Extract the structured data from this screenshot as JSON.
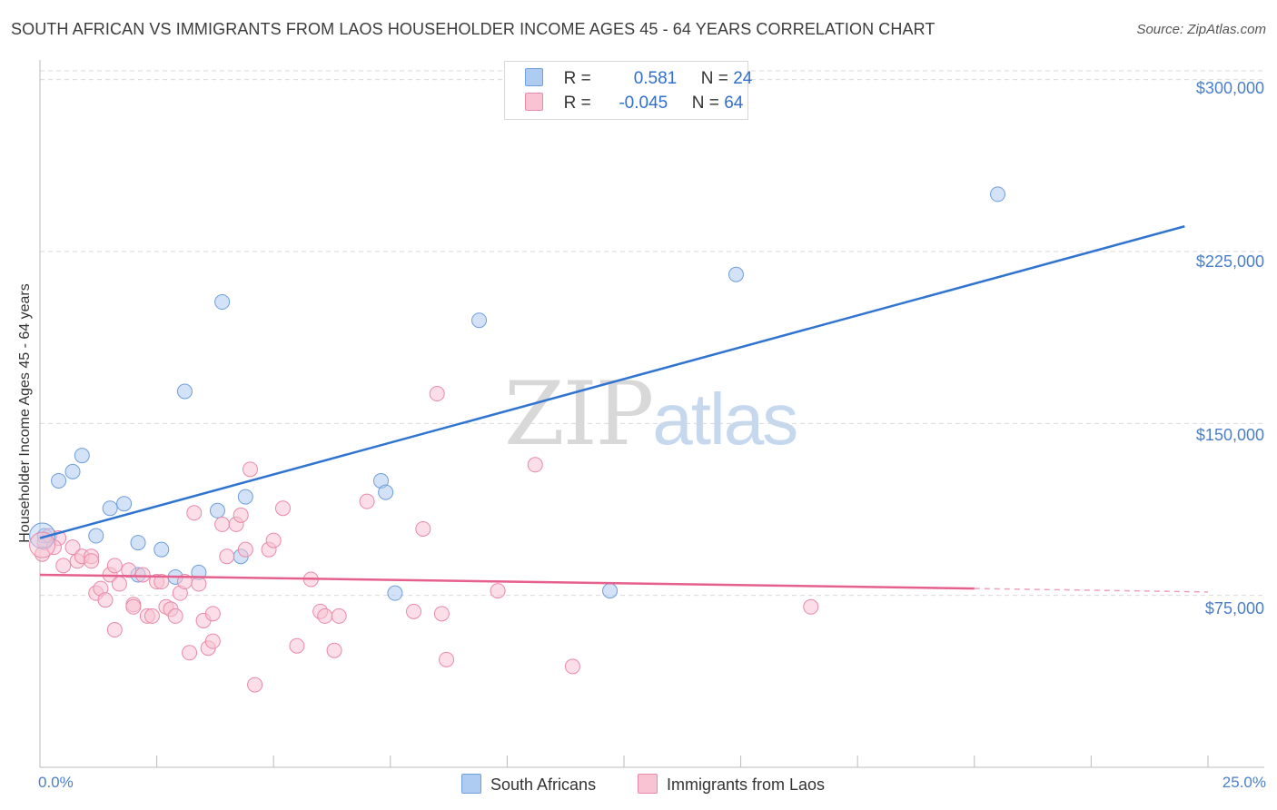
{
  "header": {
    "title": "SOUTH AFRICAN VS IMMIGRANTS FROM LAOS HOUSEHOLDER INCOME AGES 45 - 64 YEARS CORRELATION CHART",
    "source": "Source: ZipAtlas.com"
  },
  "watermark": {
    "zip": "ZIP",
    "atlas": "atlas"
  },
  "legend_top": {
    "rows": [
      {
        "r_label": "R =",
        "r_value": "0.581",
        "n_label": "N =",
        "n_value": "24",
        "color": "#aecbf1",
        "border": "#6f9fdc"
      },
      {
        "r_label": "R =",
        "r_value": "-0.045",
        "n_label": "N =",
        "n_value": "64",
        "color": "#f8c3d3",
        "border": "#e98aa8"
      }
    ]
  },
  "bottom_legend": {
    "items": [
      {
        "label": "South Africans",
        "color": "#aecbf1",
        "border": "#6f9fdc"
      },
      {
        "label": "Immigrants from Laos",
        "color": "#f8c3d3",
        "border": "#e98aa8"
      }
    ]
  },
  "chart_data": {
    "type": "scatter",
    "title": "SOUTH AFRICAN VS IMMIGRANTS FROM LAOS HOUSEHOLDER INCOME AGES 45 - 64 YEARS CORRELATION CHART",
    "xlabel": "",
    "ylabel": "Householder Income Ages 45 - 64 years",
    "xlim": [
      0,
      25
    ],
    "ylim": [
      0,
      307000
    ],
    "x_tick_labels": [
      "0.0%",
      "25.0%"
    ],
    "y_ticks": [
      75000,
      150000,
      225000,
      300000
    ],
    "y_tick_labels": [
      "$75,000",
      "$150,000",
      "$225,000",
      "$300,000"
    ],
    "grid": true,
    "legend_position": "top-center",
    "series": [
      {
        "name": "South Africans",
        "color": "#6f9fdc",
        "fill": "#aecbf1",
        "trend_color": "#2f74d0",
        "trend": {
          "x0": 0,
          "y0": 100000,
          "x1": 24.5,
          "y1": 236000
        },
        "points": [
          [
            0.1,
            101000
          ],
          [
            0.4,
            125000
          ],
          [
            0.7,
            129000
          ],
          [
            0.9,
            136000
          ],
          [
            1.2,
            101000
          ],
          [
            1.5,
            113000
          ],
          [
            1.8,
            115000
          ],
          [
            2.1,
            98000
          ],
          [
            2.1,
            84000
          ],
          [
            2.6,
            95000
          ],
          [
            2.9,
            83000
          ],
          [
            3.1,
            164000
          ],
          [
            3.4,
            85000
          ],
          [
            3.8,
            112000
          ],
          [
            3.9,
            203000
          ],
          [
            4.3,
            92000
          ],
          [
            4.4,
            118000
          ],
          [
            7.3,
            125000
          ],
          [
            7.4,
            120000
          ],
          [
            7.6,
            76000
          ],
          [
            9.4,
            195000
          ],
          [
            12.2,
            77000
          ],
          [
            14.9,
            215000
          ],
          [
            20.5,
            250000
          ]
        ]
      },
      {
        "name": "Immigrants from Laos",
        "color": "#e98aa8",
        "fill": "#f8c3d3",
        "trend_color": "#e5608d",
        "trend": {
          "x0": 0,
          "y0": 84000,
          "x1": 20,
          "y1": 78000
        },
        "trend_dashed_to": {
          "x": 25,
          "y": 76500
        },
        "points": [
          [
            0.1,
            98000
          ],
          [
            0.2,
            101000
          ],
          [
            0.4,
            100000
          ],
          [
            0.5,
            88000
          ],
          [
            0.7,
            96000
          ],
          [
            0.8,
            90000
          ],
          [
            0.9,
            92000
          ],
          [
            1.1,
            92000
          ],
          [
            1.1,
            90000
          ],
          [
            1.2,
            76000
          ],
          [
            1.3,
            78000
          ],
          [
            1.4,
            73000
          ],
          [
            1.5,
            84000
          ],
          [
            1.6,
            88000
          ],
          [
            1.6,
            60000
          ],
          [
            1.7,
            80000
          ],
          [
            1.9,
            86000
          ],
          [
            2.0,
            71000
          ],
          [
            2.0,
            70000
          ],
          [
            2.2,
            84000
          ],
          [
            2.3,
            66000
          ],
          [
            2.4,
            66000
          ],
          [
            2.5,
            81000
          ],
          [
            2.6,
            81000
          ],
          [
            2.7,
            70000
          ],
          [
            2.8,
            69000
          ],
          [
            2.9,
            66000
          ],
          [
            3.0,
            76000
          ],
          [
            3.1,
            81000
          ],
          [
            3.2,
            50000
          ],
          [
            3.4,
            80000
          ],
          [
            3.3,
            111000
          ],
          [
            3.5,
            64000
          ],
          [
            3.6,
            52000
          ],
          [
            3.7,
            67000
          ],
          [
            3.7,
            55000
          ],
          [
            3.9,
            106000
          ],
          [
            4.0,
            92000
          ],
          [
            4.2,
            106000
          ],
          [
            4.3,
            110000
          ],
          [
            4.4,
            95000
          ],
          [
            4.5,
            130000
          ],
          [
            4.6,
            36000
          ],
          [
            4.9,
            95000
          ],
          [
            5.0,
            99000
          ],
          [
            5.2,
            113000
          ],
          [
            5.5,
            53000
          ],
          [
            5.8,
            82000
          ],
          [
            6.0,
            68000
          ],
          [
            6.1,
            66000
          ],
          [
            6.3,
            51000
          ],
          [
            6.4,
            66000
          ],
          [
            7.0,
            116000
          ],
          [
            8.0,
            68000
          ],
          [
            8.2,
            104000
          ],
          [
            8.5,
            163000
          ],
          [
            8.6,
            67000
          ],
          [
            8.7,
            47000
          ],
          [
            9.8,
            77000
          ],
          [
            10.6,
            132000
          ],
          [
            11.4,
            44000
          ],
          [
            16.5,
            70000
          ],
          [
            0.05,
            93000
          ],
          [
            0.3,
            96000
          ]
        ]
      }
    ]
  }
}
